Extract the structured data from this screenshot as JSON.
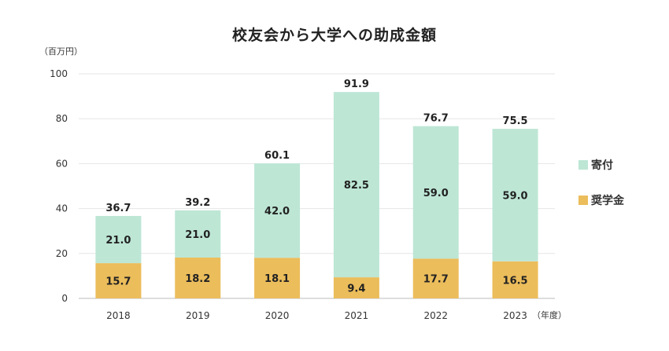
{
  "chart_data": {
    "type": "bar",
    "stacked": true,
    "title": "校友会から大学への助成金額",
    "y_unit_label": "（百万円）",
    "x_unit_label": "（年度）",
    "ylim": [
      0,
      100
    ],
    "y_ticks": [
      0,
      20,
      40,
      60,
      80,
      100
    ],
    "categories": [
      "2018",
      "2019",
      "2020",
      "2021",
      "2022",
      "2023"
    ],
    "series": [
      {
        "name": "奨学金",
        "color": "#ebbd5b",
        "values": [
          15.7,
          18.2,
          18.1,
          9.4,
          17.7,
          16.5
        ]
      },
      {
        "name": "寄付",
        "color": "#bde6d5",
        "values": [
          21.0,
          21.0,
          42.0,
          82.5,
          59.0,
          59.0
        ]
      }
    ],
    "totals": [
      36.7,
      39.2,
      60.1,
      91.9,
      76.7,
      75.5
    ],
    "grid": true,
    "legend_position": "right"
  }
}
